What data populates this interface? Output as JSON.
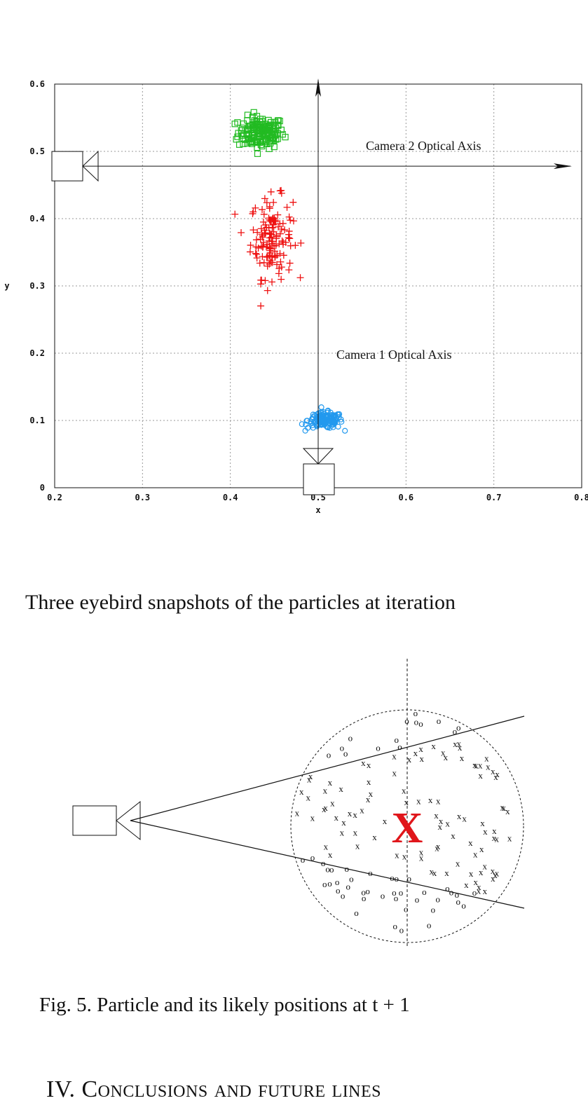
{
  "chart_data": {
    "type": "scatter",
    "title": "",
    "xlabel": "x",
    "ylabel": "y",
    "xlim": [
      0.2,
      0.8
    ],
    "ylim": [
      0,
      0.6
    ],
    "x_ticks": [
      "0.2",
      "0.3",
      "0.4",
      "0.5",
      "0.6",
      "0.7",
      "0.8"
    ],
    "y_ticks": [
      "0",
      "0.1",
      "0.2",
      "0.3",
      "0.4",
      "0.5",
      "0.6"
    ],
    "grid": true,
    "annotations": [
      "Camera 2 Optical Axis",
      "Camera 1 Optical Axis"
    ],
    "clusters": [
      {
        "color": "#22bb22",
        "marker": "square",
        "center": [
          0.435,
          0.528
        ],
        "spread": [
          0.013,
          0.012
        ],
        "count": 160
      },
      {
        "color": "#ee1111",
        "marker": "plus",
        "center": [
          0.447,
          0.372
        ],
        "spread": [
          0.012,
          0.03
        ],
        "count": 140
      },
      {
        "color": "#2299ee",
        "marker": "circle",
        "center": [
          0.508,
          0.1
        ],
        "spread": [
          0.01,
          0.006
        ],
        "count": 150
      }
    ],
    "cameras": [
      {
        "position": [
          0.2,
          0.478
        ],
        "facing": "right"
      },
      {
        "position": [
          0.5,
          0.0
        ],
        "facing": "up"
      }
    ]
  },
  "captions": {
    "figure4": "Three eyebird snapshots of the particles at iteration",
    "figure5": "Fig. 5.   Particle and its likely positions at t + 1"
  },
  "section": {
    "number": "IV.",
    "title": "Conclusions and future lines"
  },
  "diagram": {
    "center_mark": "X",
    "x_marks": [
      "x"
    ],
    "o_marks": [
      "o"
    ]
  }
}
